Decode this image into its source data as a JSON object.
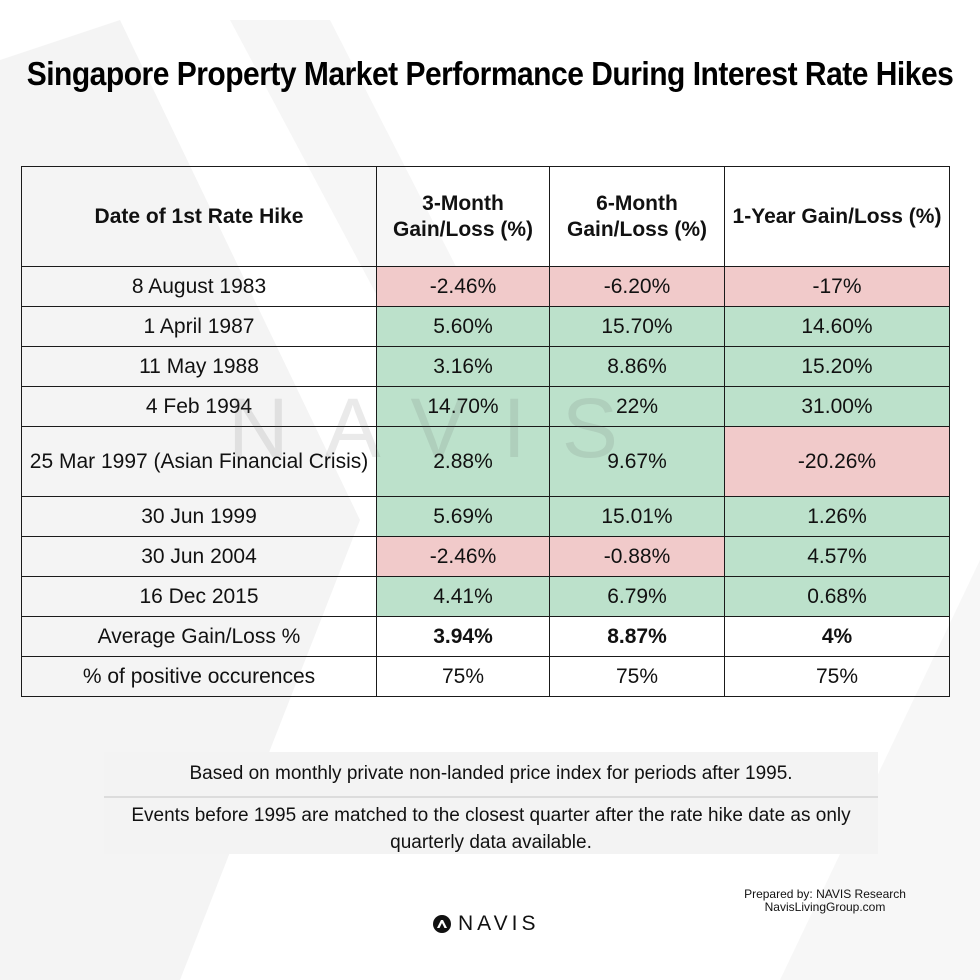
{
  "title": "Singapore Property Market Performance During Interest Rate Hikes",
  "watermark_text": "NAVIS",
  "table": {
    "headers": [
      "Date of 1st Rate Hike",
      "3-Month Gain/Loss (%)",
      "6-Month Gain/Loss (%)",
      "1-Year Gain/Loss (%)"
    ],
    "rows": [
      {
        "date": "8 August 1983",
        "m3": "-2.46%",
        "m6": "-6.20%",
        "y1": "-17%"
      },
      {
        "date": "1 April 1987",
        "m3": "5.60%",
        "m6": "15.70%",
        "y1": "14.60%"
      },
      {
        "date": "11 May 1988",
        "m3": "3.16%",
        "m6": "8.86%",
        "y1": "15.20%"
      },
      {
        "date": "4 Feb 1994",
        "m3": "14.70%",
        "m6": "22%",
        "y1": "31.00%"
      },
      {
        "date": "25 Mar 1997 (Asian Financial Crisis)",
        "m3": "2.88%",
        "m6": "9.67%",
        "y1": "-20.26%"
      },
      {
        "date": "30 Jun 1999",
        "m3": "5.69%",
        "m6": "15.01%",
        "y1": "1.26%"
      },
      {
        "date": "30 Jun 2004",
        "m3": "-2.46%",
        "m6": "-0.88%",
        "y1": "4.57%"
      },
      {
        "date": "16 Dec 2015",
        "m3": "4.41%",
        "m6": "6.79%",
        "y1": "0.68%"
      }
    ],
    "average": {
      "label": "Average Gain/Loss %",
      "m3": "3.94%",
      "m6": "8.87%",
      "y1": "4%"
    },
    "positive": {
      "label": "% of positive occurences",
      "m3": "75%",
      "m6": "75%",
      "y1": "75%"
    }
  },
  "notes": {
    "note1": "Based on monthly private non-landed price index for periods after 1995.",
    "note2": "Events before 1995 are matched to the closest quarter after the rate hike date as only quarterly data available."
  },
  "prepared": {
    "line1": "Prepared by: NAVIS Research",
    "line2": "NavisLivingGroup.com"
  },
  "logo": {
    "text": "NAVIS",
    "icon": "navis-logo-icon"
  },
  "colors": {
    "positive": "#b6dec7",
    "negative": "#f0c6c6"
  }
}
